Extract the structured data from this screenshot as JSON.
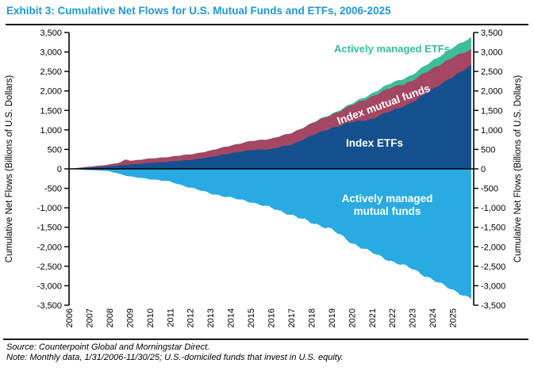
{
  "header": {
    "title": "Exhibit 3: Cumulative Net Flows for U.S. Mutual Funds and ETFs, 2006-2025",
    "title_color": "#1E97D4"
  },
  "footer": {
    "source": "Source: Counterpoint Global and Morningstar Direct.",
    "note": "Note: Monthly data, 1/31/2006-11/30/25; U.S.-domiciled funds that invest in U.S. equity."
  },
  "chart_data": {
    "type": "area",
    "stacked": true,
    "title": "Exhibit 3: Cumulative Net Flows for U.S. Mutual Funds and ETFs, 2006-2025",
    "ylabel_left": "Cumulative Net Flows (Billions of U.S. Dollars)",
    "ylabel_right": "Cumulative Net Flows (Billions of U.S. Dollars)",
    "ylim": [
      -3500,
      3500
    ],
    "ytick_step": 500,
    "grid": false,
    "legend": "in-plot-labels",
    "x_tick_labels": [
      "2006",
      "2007",
      "2008",
      "2009",
      "2010",
      "2011",
      "2012",
      "2013",
      "2014",
      "2015",
      "2016",
      "2017",
      "2018",
      "2019",
      "2020",
      "2021",
      "2022",
      "2023",
      "2024",
      "2025"
    ],
    "x_anchor_years": [
      2006,
      2007,
      2008,
      2009,
      2010,
      2011,
      2012,
      2013,
      2014,
      2015,
      2016,
      2017,
      2018,
      2019,
      2020,
      2021,
      2022,
      2023,
      2024,
      2025,
      2025.92
    ],
    "series": [
      {
        "name": "Index ETFs",
        "color": "#14508E",
        "label_text": "Index ETFs",
        "label_color": "#FFFFFF",
        "values": [
          0,
          30,
          65,
          110,
          150,
          185,
          230,
          300,
          400,
          480,
          510,
          620,
          850,
          1050,
          1200,
          1280,
          1500,
          1700,
          2050,
          2350,
          2670
        ]
      },
      {
        "name": "Index mutual funds",
        "color": "#A54663",
        "label_text": "Index mutual funds",
        "label_color": "#FFFFFF",
        "values": [
          0,
          25,
          45,
          95,
          110,
          125,
          140,
          165,
          200,
          230,
          265,
          290,
          310,
          340,
          430,
          580,
          590,
          560,
          530,
          505,
          400
        ]
      },
      {
        "name": "Actively managed ETFs",
        "color": "#3EBD9B",
        "label_text": "Actively managed ETFs",
        "label_color": "#35BD9A",
        "values": [
          0,
          0,
          0,
          0,
          0,
          0,
          0,
          0,
          0,
          0,
          0,
          5,
          10,
          20,
          40,
          80,
          120,
          150,
          200,
          250,
          310
        ]
      },
      {
        "name": "Actively managed mutual funds",
        "color": "#29ABE2",
        "label_text": "Actively managed mutual funds",
        "label_color": "#FFFFFF",
        "values": [
          0,
          -30,
          -60,
          -200,
          -260,
          -330,
          -480,
          -630,
          -740,
          -850,
          -1000,
          -1180,
          -1380,
          -1550,
          -1900,
          -2150,
          -2380,
          -2560,
          -2850,
          -3100,
          -3350
        ]
      }
    ]
  }
}
